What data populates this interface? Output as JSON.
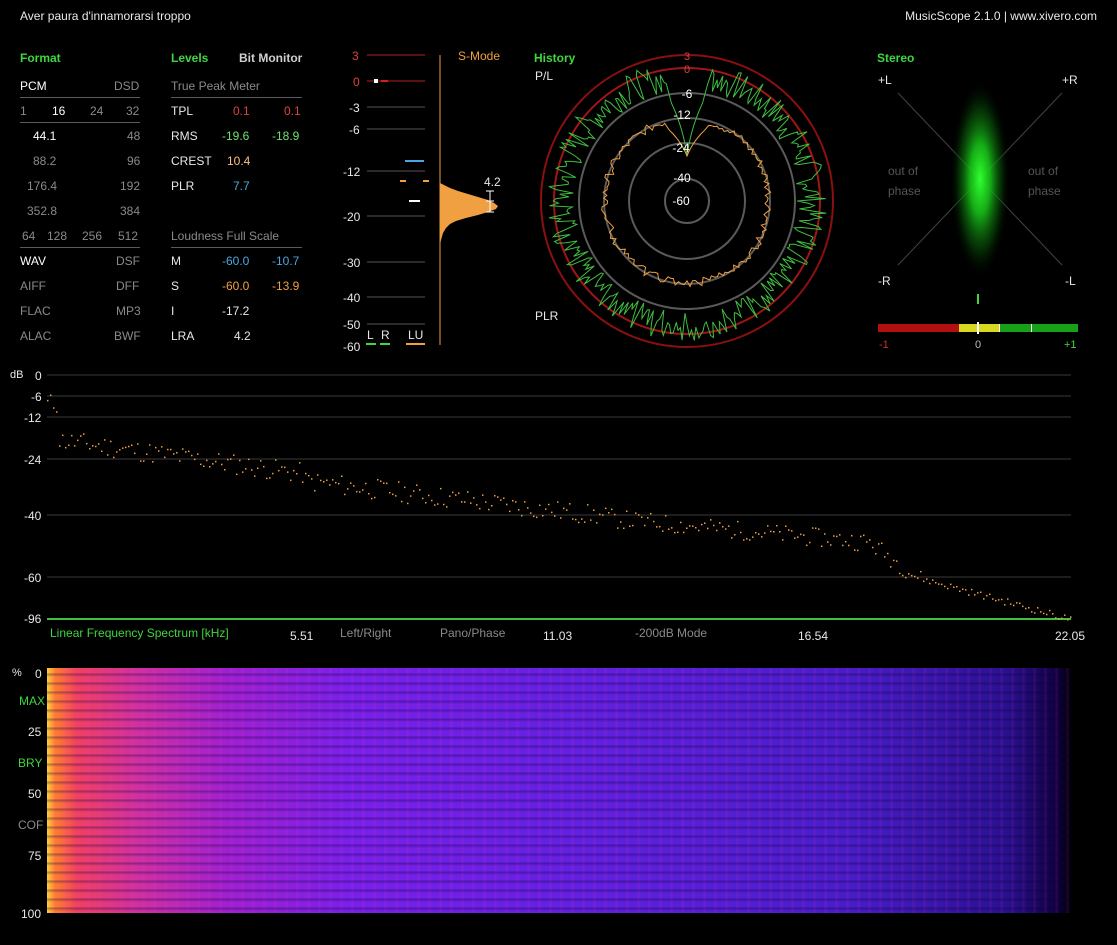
{
  "window": {
    "track_title": "Aver paura d'innamorarsi troppo",
    "app_title": "MusicScope 2.1.0 | www.xivero.com"
  },
  "format": {
    "heading": "Format",
    "pcm": "PCM",
    "dsd": "DSD",
    "bits": [
      "1",
      "16",
      "24",
      "32"
    ],
    "rates": [
      [
        "44.1",
        "48"
      ],
      [
        "88.2",
        "96"
      ],
      [
        "176.4",
        "192"
      ],
      [
        "352.8",
        "384"
      ]
    ],
    "dsd_rates": [
      "64",
      "128",
      "256",
      "512"
    ],
    "containers": [
      [
        "WAV",
        "DSF"
      ],
      [
        "AIFF",
        "DFF"
      ],
      [
        "FLAC",
        "MP3"
      ],
      [
        "ALAC",
        "BWF"
      ]
    ]
  },
  "levels": {
    "heading": "Levels",
    "bit_monitor": "Bit Monitor",
    "true_peak_heading": "True Peak Meter",
    "rows": [
      {
        "label": "TPL",
        "l": "0.1",
        "r": "0.1"
      },
      {
        "label": "RMS",
        "l": "-19.6",
        "r": "-18.9"
      },
      {
        "label": "CREST",
        "l": "10.4"
      },
      {
        "label": "PLR",
        "l": "7.7"
      }
    ],
    "loudness_heading": "Loudness Full Scale",
    "loud_rows": [
      {
        "label": "M",
        "a": "-60.0",
        "b": "-10.7"
      },
      {
        "label": "S",
        "a": "-60.0",
        "b": "-13.9"
      },
      {
        "label": "I",
        "a": "-17.2"
      },
      {
        "label": "LRA",
        "a": "4.2"
      }
    ]
  },
  "meter": {
    "scale": [
      "3",
      "0",
      "-3",
      "-6",
      "-12",
      "-20",
      "-30",
      "-40",
      "-50",
      "-60"
    ],
    "mode": "S-Mode",
    "lra_value": "4.2",
    "legend": [
      "L",
      "R",
      "LU"
    ]
  },
  "history": {
    "heading": "History",
    "pl_label": "P/L",
    "plr_label": "PLR",
    "rings": [
      "3",
      "0",
      "-6",
      "-12",
      "-24",
      "-40",
      "-60"
    ]
  },
  "stereo": {
    "heading": "Stereo",
    "plus_l": "+L",
    "plus_r": "+R",
    "minus_r": "-R",
    "minus_l": "-L",
    "out_of_phase": [
      "out of",
      "phase"
    ],
    "corr_scale": [
      "-1",
      "0",
      "+1"
    ]
  },
  "spectrum": {
    "db_label": "dB",
    "y_ticks": [
      "0",
      "-6",
      "-12",
      "-24",
      "-40",
      "-60",
      "-96"
    ],
    "x_title": "Linear Frequency Spectrum [kHz]",
    "x_ticks": [
      "5.51",
      "11.03",
      "16.54",
      "22.05"
    ],
    "modes": [
      "Left/Right",
      "Pano/Phase",
      "-200dB Mode"
    ]
  },
  "spectrogram": {
    "pct_label": "%",
    "ticks": [
      "0",
      "MAX",
      "25",
      "BRY",
      "50",
      "COF",
      "75",
      "100"
    ]
  },
  "colors": {
    "accent_green": "#3fd63f",
    "orange": "#f0a040",
    "red": "#d02020",
    "blue": "#4aa8e0"
  }
}
